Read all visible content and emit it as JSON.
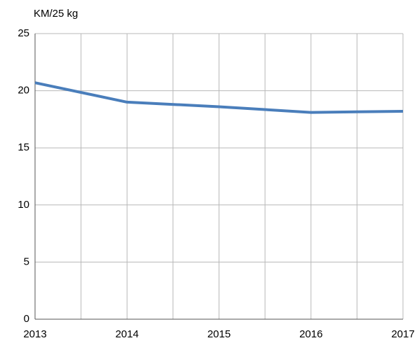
{
  "chart_data": {
    "type": "line",
    "y_label": "KM/25 kg",
    "x": [
      2013,
      2014,
      2015,
      2016,
      2017
    ],
    "series": [
      {
        "name": "KM/25 kg",
        "color": "#4a7ebb",
        "values": [
          20.7,
          19.0,
          18.6,
          18.1,
          18.2
        ]
      }
    ],
    "xlim": [
      2013,
      2017
    ],
    "xticks": [
      2013,
      2014,
      2015,
      2016,
      2017
    ],
    "ylim": [
      0,
      25
    ],
    "yticks": [
      0,
      5,
      10,
      15,
      20,
      25
    ],
    "grid": true,
    "x_minor_grid": true,
    "legend": false
  }
}
